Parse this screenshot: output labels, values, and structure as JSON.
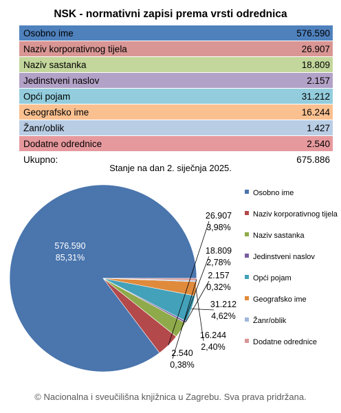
{
  "title": "NSK - normativni zapisi prema vrsti odrednica",
  "rows": [
    {
      "label": "Osobno ime",
      "value": "576.590",
      "color": "#4f81bd"
    },
    {
      "label": "Naziv korporativnog tijela",
      "value": "26.907",
      "color": "#d99694"
    },
    {
      "label": "Naziv sastanka",
      "value": "18.809",
      "color": "#c3d69b"
    },
    {
      "label": "Jedinstveni naslov",
      "value": "2.157",
      "color": "#b3a2c7"
    },
    {
      "label": "Opći pojam",
      "value": "31.212",
      "color": "#93cddd"
    },
    {
      "label": "Geografsko ime",
      "value": "16.244",
      "color": "#fac090"
    },
    {
      "label": "Žanr/oblik",
      "value": "1.427",
      "color": "#b9cde5"
    },
    {
      "label": "Dodatne odrednice",
      "value": "2.540",
      "color": "#e6999d"
    }
  ],
  "total": {
    "label": "Ukupno:",
    "value": "675.886"
  },
  "date_note": "Stanje na dan 2. siječnja 2025.",
  "footer": "© Nacionalna i sveučilišna knjižnica u Zagrebu. Sva prava pridržana.",
  "chart_data": {
    "type": "pie",
    "start_angle_deg": 0,
    "direction": "counterclockwise",
    "legend_position": "right",
    "slices": [
      {
        "name": "Osobno ime",
        "value": 576590,
        "value_label": "576.590",
        "percent_label": "85,31%",
        "color": "#4a75ad"
      },
      {
        "name": "Naziv korporativnog tijela",
        "value": 26907,
        "value_label": "26.907",
        "percent_label": "3,98%",
        "color": "#b3494a"
      },
      {
        "name": "Naziv sastanka",
        "value": 18809,
        "value_label": "18.809",
        "percent_label": "2,78%",
        "color": "#8faa4a"
      },
      {
        "name": "Jedinstveni naslov",
        "value": 2157,
        "value_label": "2.157",
        "percent_label": "0,32%",
        "color": "#7a5da0"
      },
      {
        "name": "Opći pojam",
        "value": 31212,
        "value_label": "31.212",
        "percent_label": "4,62%",
        "color": "#43a1ba"
      },
      {
        "name": "Geografsko ime",
        "value": 16244,
        "value_label": "16.244",
        "percent_label": "2,40%",
        "color": "#e08a3c"
      },
      {
        "name": "Žanr/oblik",
        "value": 1427,
        "value_label": "",
        "percent_label": "",
        "color": "#9fb8dc"
      },
      {
        "name": "Dodatne odrednice",
        "value": 2540,
        "value_label": "2.540",
        "percent_label": "0,38%",
        "color": "#d99694"
      }
    ]
  }
}
